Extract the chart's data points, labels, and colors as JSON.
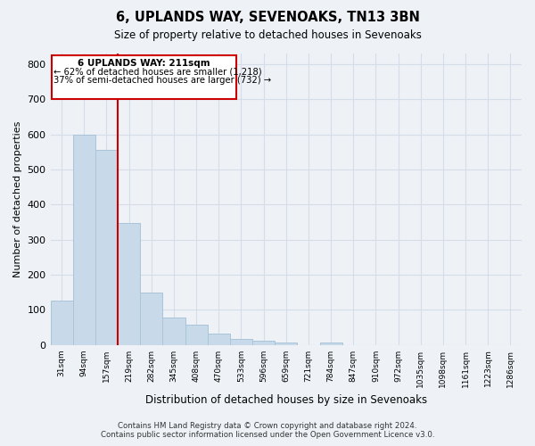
{
  "title": "6, UPLANDS WAY, SEVENOAKS, TN13 3BN",
  "subtitle": "Size of property relative to detached houses in Sevenoaks",
  "xlabel": "Distribution of detached houses by size in Sevenoaks",
  "ylabel": "Number of detached properties",
  "footer_line1": "Contains HM Land Registry data © Crown copyright and database right 2024.",
  "footer_line2": "Contains public sector information licensed under the Open Government Licence v3.0.",
  "bar_labels": [
    "31sqm",
    "94sqm",
    "157sqm",
    "219sqm",
    "282sqm",
    "345sqm",
    "408sqm",
    "470sqm",
    "533sqm",
    "596sqm",
    "659sqm",
    "721sqm",
    "784sqm",
    "847sqm",
    "910sqm",
    "972sqm",
    "1035sqm",
    "1098sqm",
    "1161sqm",
    "1223sqm",
    "1286sqm"
  ],
  "bar_values": [
    125,
    600,
    555,
    347,
    150,
    78,
    57,
    33,
    16,
    12,
    8,
    0,
    8,
    0,
    0,
    0,
    0,
    0,
    0,
    0,
    0
  ],
  "bar_color": "#c8daea",
  "bar_edge_color": "#aac4d8",
  "grid_color": "#d5dde8",
  "annotation_box_text_line1": "6 UPLANDS WAY: 211sqm",
  "annotation_box_text_line2": "← 62% of detached houses are smaller (1,218)",
  "annotation_box_text_line3": "37% of semi-detached houses are larger (732) →",
  "annotation_box_color": "#cc0000",
  "vline_color": "#cc0000",
  "ylim": [
    0,
    830
  ],
  "background_color": "#eef2f7",
  "plot_background_color": "#eef2f7"
}
